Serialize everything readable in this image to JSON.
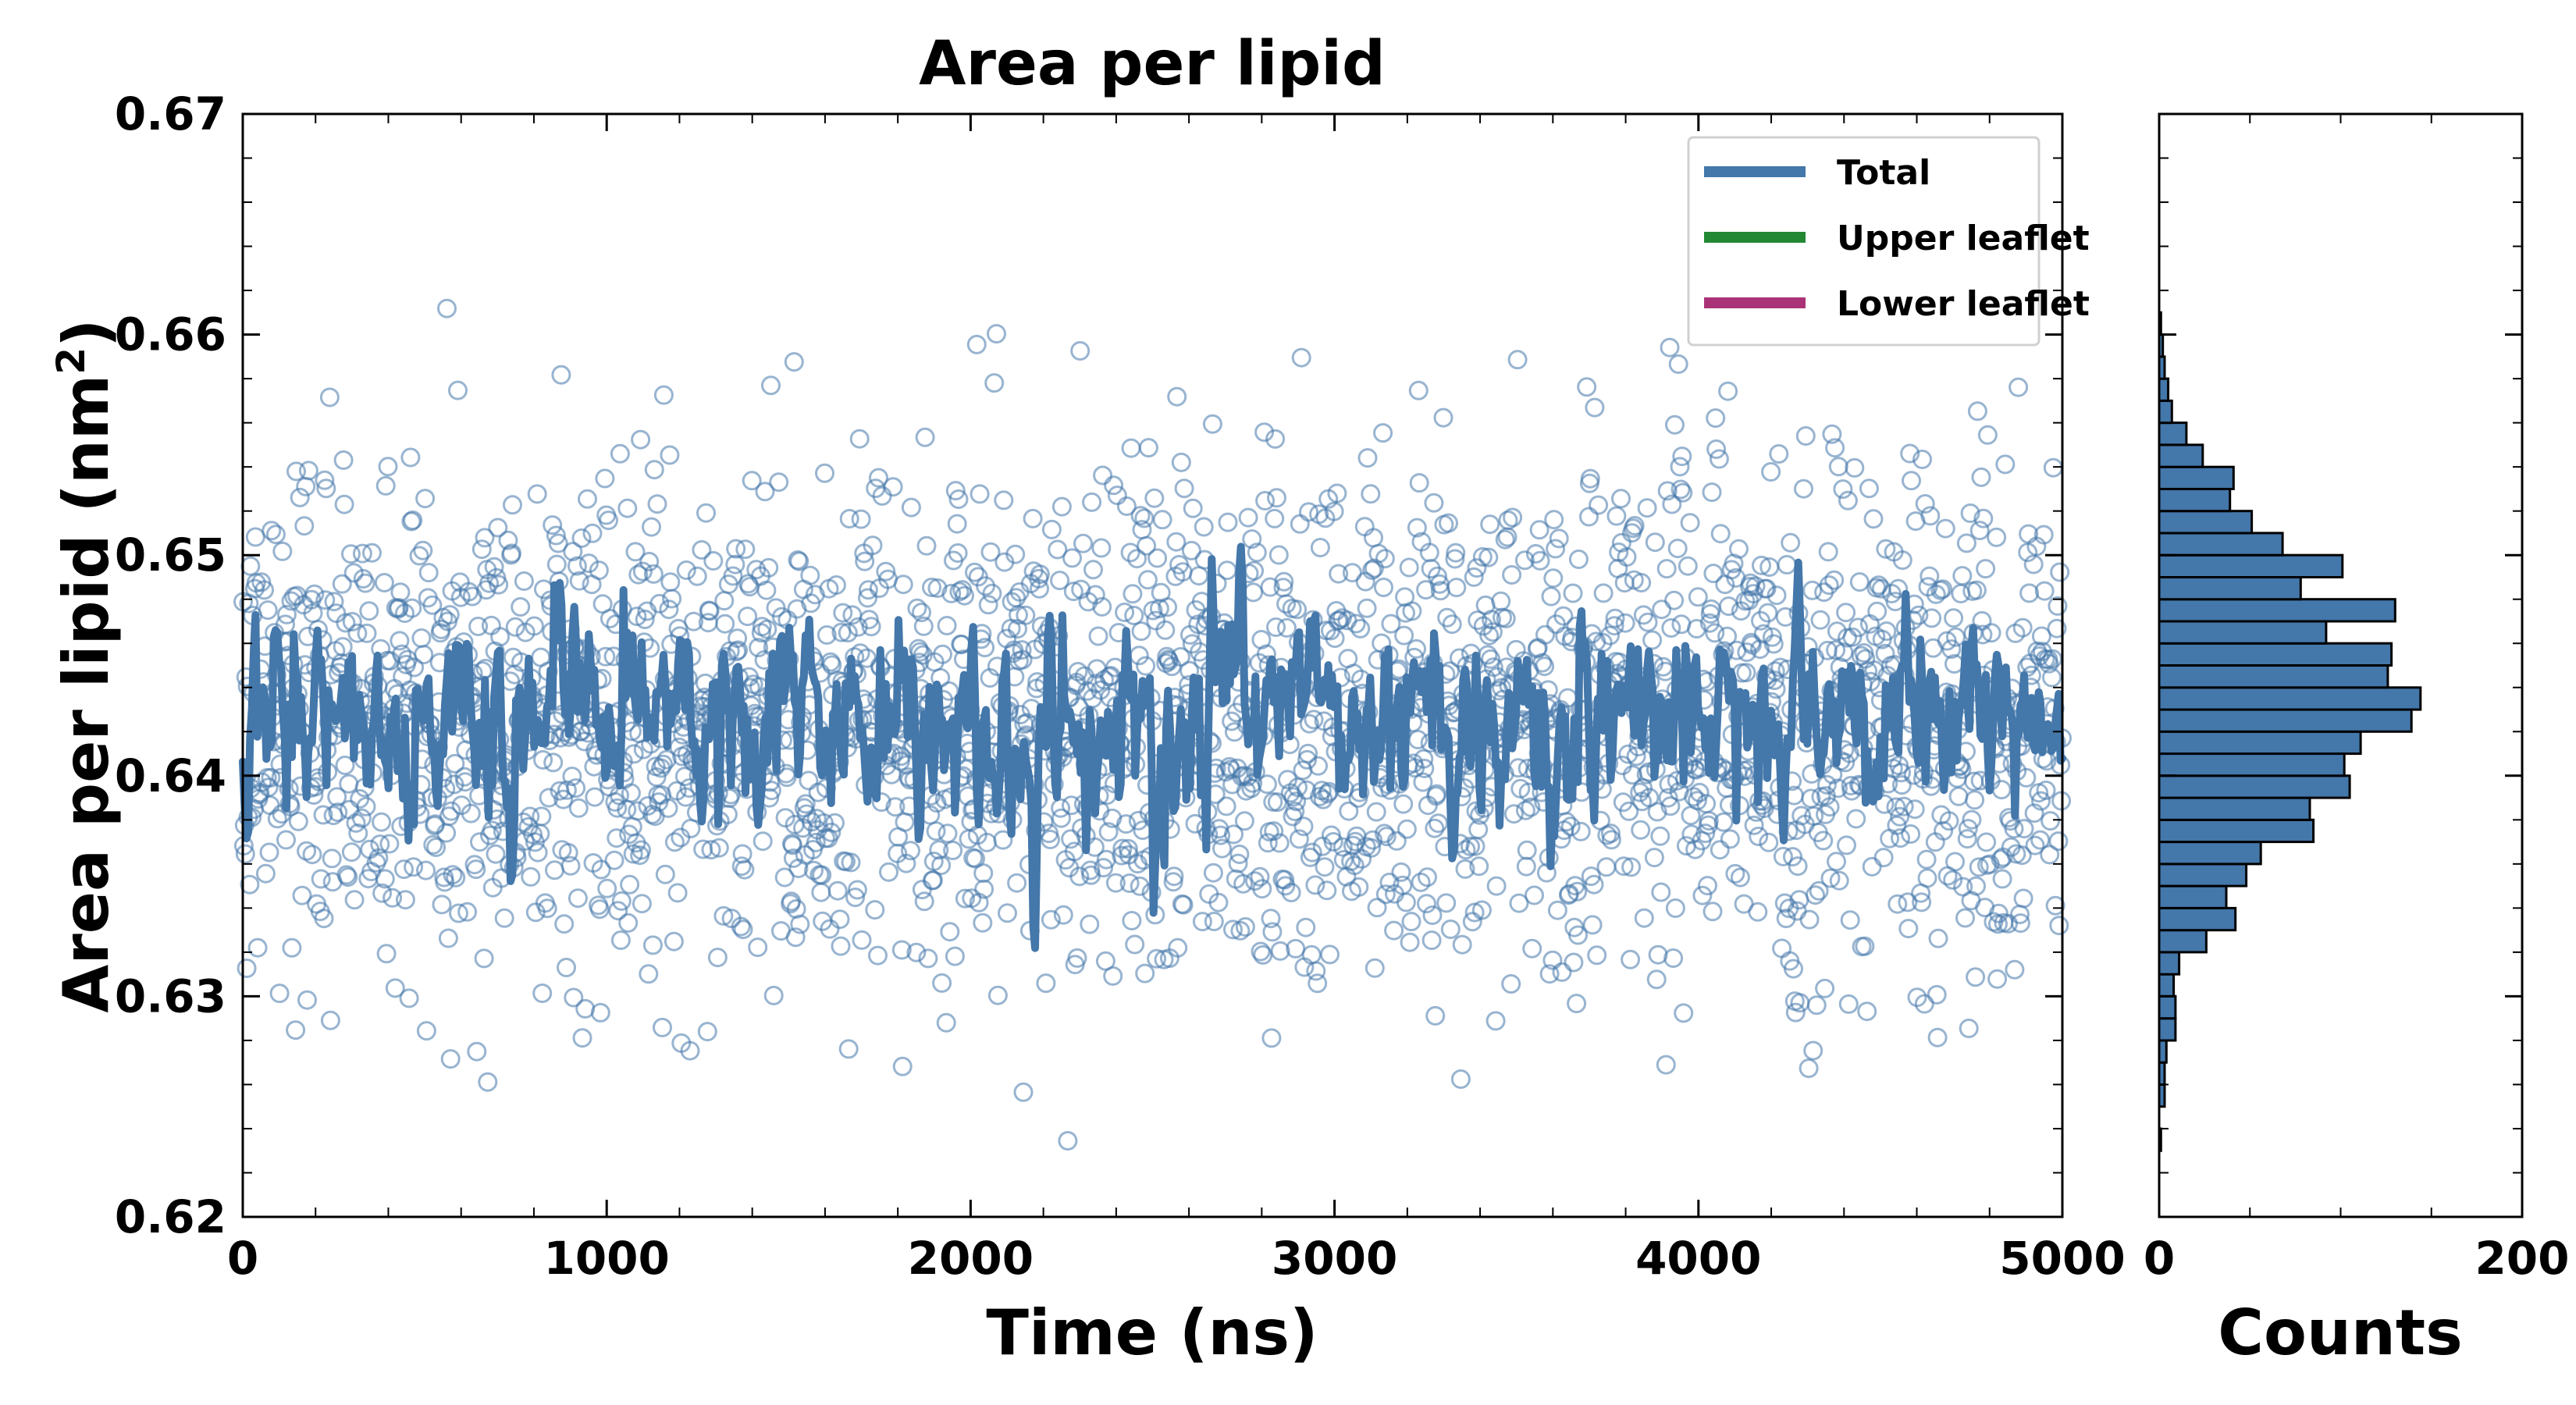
{
  "chart_data": [
    {
      "type": "line",
      "title": "Area per lipid",
      "xlabel": "Time (ns)",
      "ylabel_main": "Area per lipid (nm",
      "ylabel_sup": "2",
      "ylabel_close": ")",
      "xlim": [
        0,
        5000
      ],
      "ylim": [
        0.62,
        0.67
      ],
      "xticks": [
        "0",
        "1000",
        "2000",
        "3000",
        "4000",
        "5000"
      ],
      "yticks": [
        "0.62",
        "0.63",
        "0.64",
        "0.65",
        "0.66",
        "0.67"
      ],
      "legend_position": "top-right",
      "series": [
        {
          "name": "Total",
          "color": "#4477aa",
          "style": "line"
        },
        {
          "name": "Upper leaflet",
          "color": "#228833",
          "style": "line"
        },
        {
          "name": "Lower leaflet",
          "color": "#aa3377",
          "style": "line"
        }
      ],
      "scatter": {
        "color": "#4477aa",
        "marker": "open-circle",
        "n_points": 2500,
        "mean": 0.6425,
        "sd": 0.0058
      },
      "total_line": {
        "n_points": 1000,
        "mean": 0.6425,
        "sd": 0.0022
      }
    },
    {
      "type": "bar",
      "orientation": "horizontal",
      "xlabel": "Counts",
      "xlim": [
        0,
        200
      ],
      "xticks": [
        "0",
        "200"
      ],
      "bar_color": "#4477aa",
      "bin_width": 0.001,
      "bins": [
        {
          "y0": 0.623,
          "count": 1
        },
        {
          "y0": 0.624,
          "count": 0
        },
        {
          "y0": 0.625,
          "count": 3
        },
        {
          "y0": 0.626,
          "count": 3
        },
        {
          "y0": 0.627,
          "count": 4
        },
        {
          "y0": 0.628,
          "count": 9
        },
        {
          "y0": 0.629,
          "count": 9
        },
        {
          "y0": 0.63,
          "count": 8
        },
        {
          "y0": 0.631,
          "count": 11
        },
        {
          "y0": 0.632,
          "count": 26
        },
        {
          "y0": 0.633,
          "count": 42
        },
        {
          "y0": 0.634,
          "count": 37
        },
        {
          "y0": 0.635,
          "count": 48
        },
        {
          "y0": 0.636,
          "count": 56
        },
        {
          "y0": 0.637,
          "count": 85
        },
        {
          "y0": 0.638,
          "count": 83
        },
        {
          "y0": 0.639,
          "count": 105
        },
        {
          "y0": 0.64,
          "count": 102
        },
        {
          "y0": 0.641,
          "count": 111
        },
        {
          "y0": 0.642,
          "count": 139
        },
        {
          "y0": 0.643,
          "count": 144
        },
        {
          "y0": 0.644,
          "count": 126
        },
        {
          "y0": 0.645,
          "count": 128
        },
        {
          "y0": 0.646,
          "count": 92
        },
        {
          "y0": 0.647,
          "count": 130
        },
        {
          "y0": 0.648,
          "count": 78
        },
        {
          "y0": 0.649,
          "count": 101
        },
        {
          "y0": 0.65,
          "count": 68
        },
        {
          "y0": 0.651,
          "count": 51
        },
        {
          "y0": 0.652,
          "count": 39
        },
        {
          "y0": 0.653,
          "count": 41
        },
        {
          "y0": 0.654,
          "count": 24
        },
        {
          "y0": 0.655,
          "count": 15
        },
        {
          "y0": 0.656,
          "count": 7
        },
        {
          "y0": 0.657,
          "count": 5
        },
        {
          "y0": 0.658,
          "count": 3
        },
        {
          "y0": 0.659,
          "count": 2
        },
        {
          "y0": 0.66,
          "count": 1
        }
      ]
    }
  ]
}
